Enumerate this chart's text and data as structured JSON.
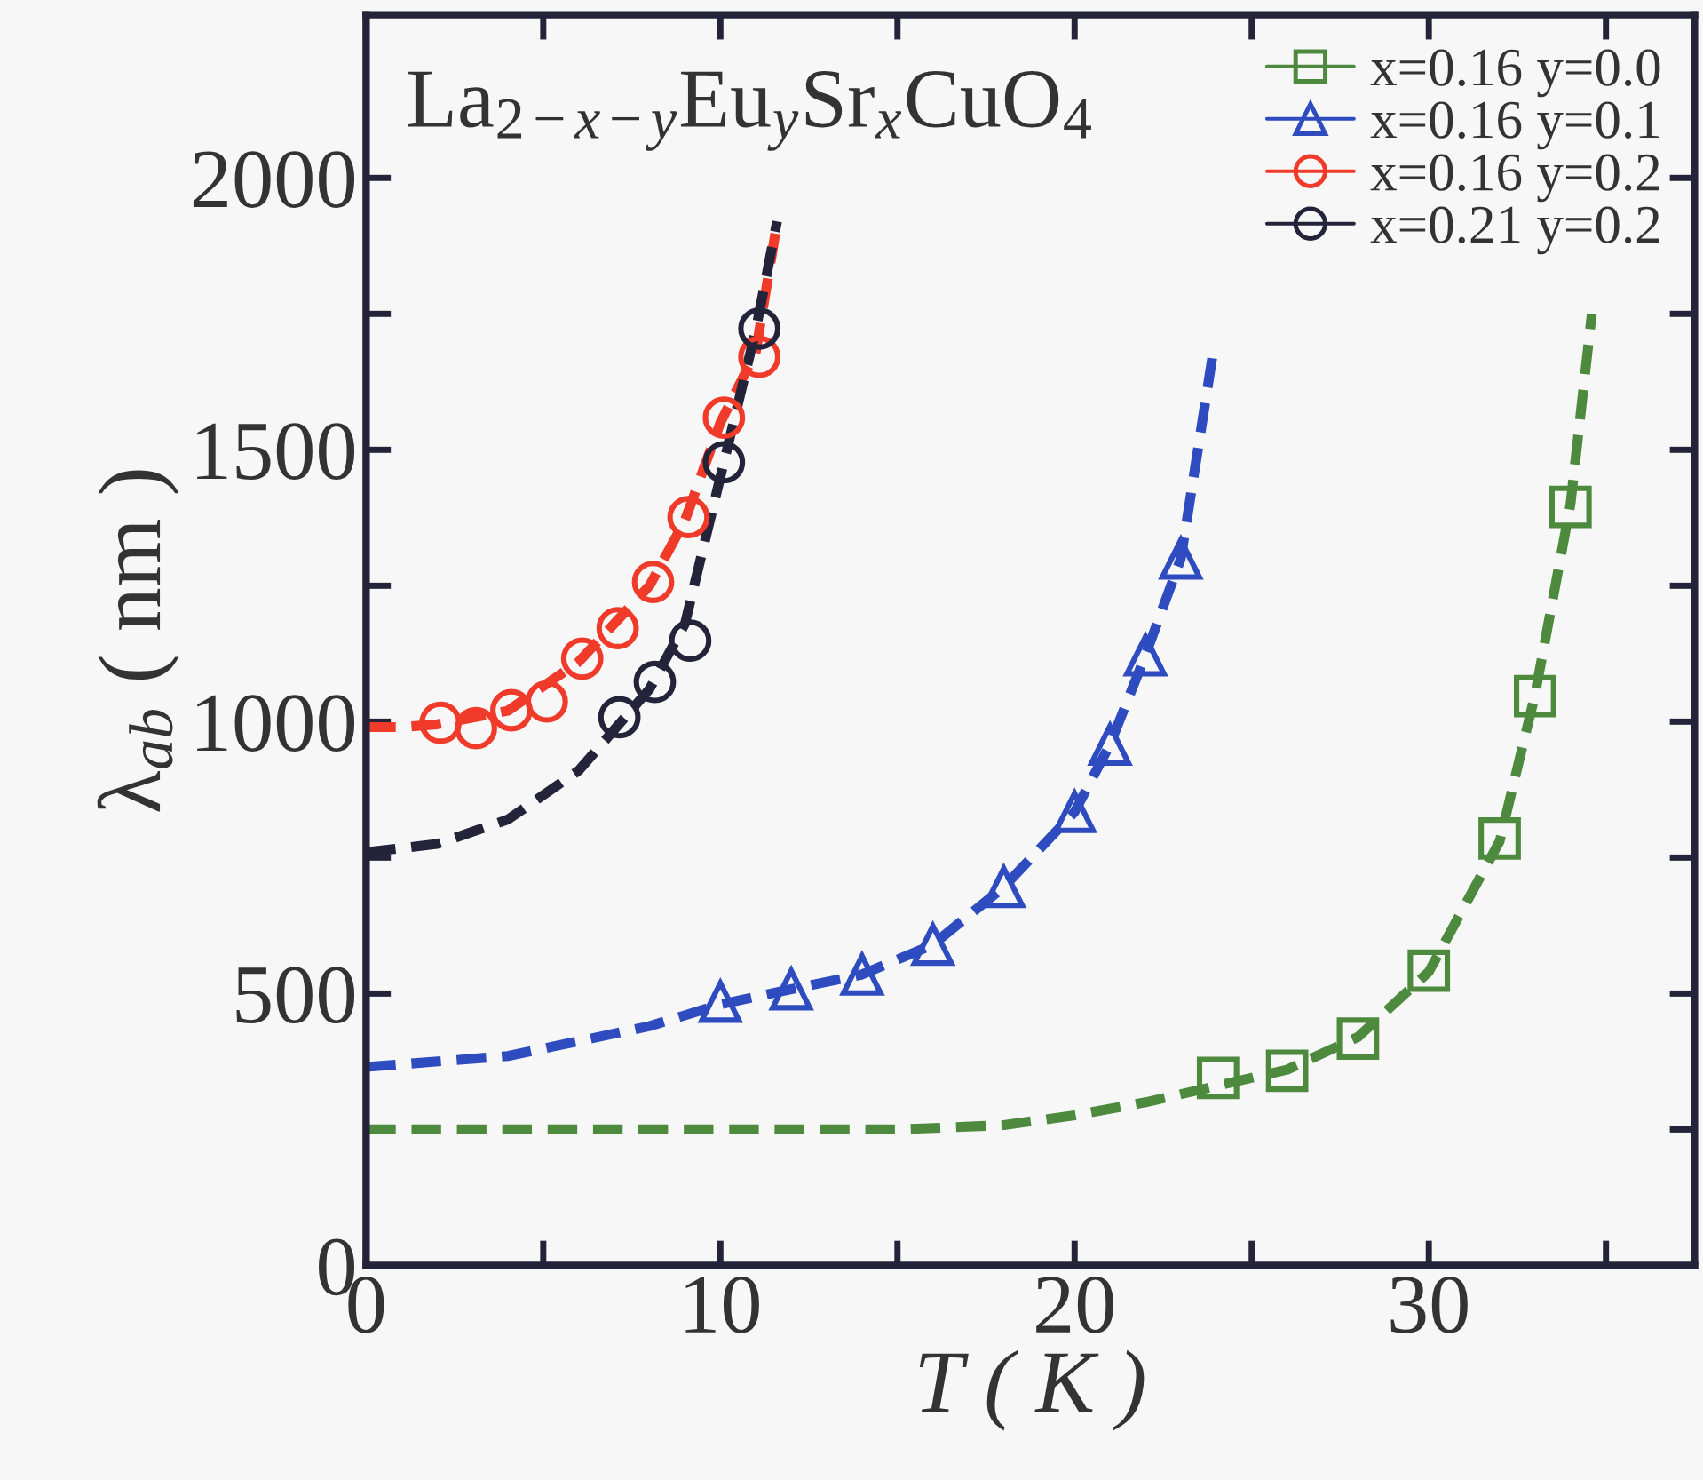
{
  "chart_data": {
    "type": "scatter",
    "title": "La$_{2−x−y}$Eu$_{y}$Sr$_{x}$CuO$_{4}$",
    "xlabel": "T ( K )",
    "ylabel": "λ$_{ab}$ ( nm )",
    "xlim": [
      0,
      37.5
    ],
    "ylim": [
      0,
      2300
    ],
    "xticks": [
      0,
      {
        "value": 5,
        "label": null
      },
      10,
      {
        "value": 15,
        "label": null
      },
      20,
      {
        "value": 25,
        "label": null
      },
      30,
      {
        "value": 35,
        "label": null
      }
    ],
    "yticks": [
      0,
      {
        "value": 250,
        "label": null
      },
      500,
      {
        "value": 750,
        "label": null
      },
      1000,
      {
        "value": 1250,
        "label": null
      },
      1500,
      {
        "value": 1750,
        "label": null
      },
      2000
    ],
    "grid": false,
    "legend": "top right",
    "series": [
      {
        "name": "x=0.16 y=0.0",
        "marker": "square",
        "color": "#4e8a3e",
        "x": [
          24.05,
          26,
          28,
          30,
          32,
          33,
          34
        ],
        "values": [
          345,
          358,
          417,
          542,
          785,
          1047,
          1395
        ]
      },
      {
        "name": "x=0.16 y=0.1",
        "marker": "triangle",
        "color": "#2e4cc0",
        "x": [
          10,
          12,
          14,
          16,
          18,
          20,
          21,
          22,
          23
        ],
        "values": [
          485,
          508,
          535,
          590,
          696,
          834,
          958,
          1122,
          1300
        ]
      },
      {
        "name": "x=0.16 y=0.2",
        "marker": "circle",
        "color": "#f03a2a",
        "x": [
          2.1,
          3.1,
          4.1,
          5.1,
          6.1,
          7.1,
          8.1,
          9.1,
          10.1,
          11.1
        ],
        "values": [
          998,
          988,
          1021,
          1037,
          1116,
          1172,
          1257,
          1376,
          1559,
          1671
        ]
      },
      {
        "name": "x=0.21 y=0.2",
        "marker": "circle",
        "color": "#23233a",
        "x": [
          7.15,
          8.15,
          9.15,
          10.1,
          11.1
        ],
        "values": [
          1008,
          1073,
          1149,
          1477,
          1723
        ]
      },
      {
        "type": "line",
        "line_style": "dashed",
        "color": "#4e8a3e",
        "x": [
          0,
          10,
          15,
          18,
          20,
          22,
          24,
          26,
          28,
          30,
          32,
          33,
          34,
          34.6
        ],
        "values": [
          250,
          250,
          250,
          258,
          276,
          300,
          330,
          360,
          420,
          540,
          780,
          1050,
          1400,
          1750
        ]
      },
      {
        "type": "line",
        "line_style": "dashed",
        "color": "#2e4cc0",
        "x": [
          0,
          4,
          8,
          10,
          12,
          14,
          16,
          18,
          20,
          21,
          22,
          23,
          23.9
        ],
        "values": [
          365,
          385,
          440,
          480,
          508,
          535,
          590,
          696,
          834,
          958,
          1122,
          1300,
          1675
        ]
      },
      {
        "type": "line",
        "line_style": "dashed",
        "color": "#f03a2a",
        "x": [
          0,
          1,
          2,
          4,
          6,
          8,
          9,
          10,
          11,
          11.6
        ],
        "values": [
          990,
          990,
          995,
          1020,
          1110,
          1250,
          1370,
          1550,
          1680,
          1917
        ]
      },
      {
        "type": "line",
        "line_style": "dashed",
        "color": "#23233a",
        "x": [
          0,
          2,
          4,
          6,
          8,
          9,
          10,
          11,
          11.6
        ],
        "values": [
          760,
          775,
          820,
          910,
          1060,
          1180,
          1450,
          1720,
          1920
        ]
      }
    ]
  }
}
